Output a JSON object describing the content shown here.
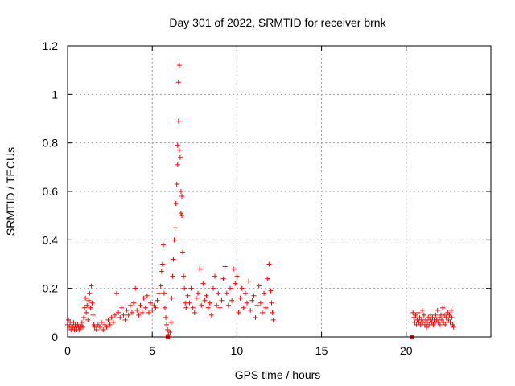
{
  "chart_data": {
    "type": "scatter",
    "title": "Day 301 of 2022, SRMTID for receiver brnk",
    "xlabel": "GPS time / hours",
    "ylabel": "SRMTID / TECUs",
    "xlim": [
      0,
      25
    ],
    "ylim": [
      0,
      1.2
    ],
    "grid": true,
    "marker": "+",
    "color": "#ff0000",
    "xticks": [
      0,
      5,
      10,
      15,
      20
    ],
    "xtick_labels": [
      "0",
      "5",
      "10",
      "15",
      "20"
    ],
    "yticks": [
      0,
      0.2,
      0.4,
      0.6,
      0.8,
      1,
      1.2
    ],
    "ytick_labels": [
      "0",
      "0.2",
      "0.4",
      "0.6",
      "0.8",
      "1",
      "1.2"
    ],
    "series": [
      {
        "name": "SRMTID",
        "points": [
          [
            0.0,
            0.05
          ],
          [
            0.05,
            0.07
          ],
          [
            0.1,
            0.04
          ],
          [
            0.15,
            0.06
          ],
          [
            0.2,
            0.03
          ],
          [
            0.25,
            0.05
          ],
          [
            0.3,
            0.04
          ],
          [
            0.35,
            0.06
          ],
          [
            0.4,
            0.03
          ],
          [
            0.45,
            0.05
          ],
          [
            0.5,
            0.04
          ],
          [
            0.55,
            0.03
          ],
          [
            0.6,
            0.05
          ],
          [
            0.65,
            0.04
          ],
          [
            0.7,
            0.03
          ],
          [
            0.75,
            0.05
          ],
          [
            0.8,
            0.04
          ],
          [
            0.85,
            0.06
          ],
          [
            0.9,
            0.04
          ],
          [
            0.95,
            0.08
          ],
          [
            1.0,
            0.12
          ],
          [
            1.05,
            0.16
          ],
          [
            1.1,
            0.1
          ],
          [
            1.15,
            0.13
          ],
          [
            1.2,
            0.07
          ],
          [
            1.25,
            0.15
          ],
          [
            1.3,
            0.18
          ],
          [
            1.35,
            0.12
          ],
          [
            1.4,
            0.21
          ],
          [
            1.45,
            0.14
          ],
          [
            1.5,
            0.09
          ],
          [
            1.55,
            0.05
          ],
          [
            1.6,
            0.04
          ],
          [
            1.7,
            0.03
          ],
          [
            1.8,
            0.05
          ],
          [
            1.9,
            0.04
          ],
          [
            2.0,
            0.06
          ],
          [
            2.1,
            0.03
          ],
          [
            2.2,
            0.05
          ],
          [
            2.3,
            0.04
          ],
          [
            2.4,
            0.07
          ],
          [
            2.5,
            0.05
          ],
          [
            2.6,
            0.08
          ],
          [
            2.7,
            0.06
          ],
          [
            2.8,
            0.09
          ],
          [
            2.9,
            0.18
          ],
          [
            3.0,
            0.1
          ],
          [
            3.1,
            0.08
          ],
          [
            3.2,
            0.12
          ],
          [
            3.3,
            0.09
          ],
          [
            3.4,
            0.07
          ],
          [
            3.5,
            0.11
          ],
          [
            3.6,
            0.09
          ],
          [
            3.7,
            0.13
          ],
          [
            3.8,
            0.1
          ],
          [
            3.9,
            0.14
          ],
          [
            4.0,
            0.2
          ],
          [
            4.1,
            0.11
          ],
          [
            4.2,
            0.09
          ],
          [
            4.3,
            0.13
          ],
          [
            4.4,
            0.1
          ],
          [
            4.5,
            0.16
          ],
          [
            4.6,
            0.12
          ],
          [
            4.7,
            0.17
          ],
          [
            4.8,
            0.1
          ],
          [
            4.9,
            0.14
          ],
          [
            5.0,
            0.11
          ],
          [
            5.1,
            0.13
          ],
          [
            5.2,
            0.12
          ],
          [
            5.3,
            0.15
          ],
          [
            5.4,
            0.18
          ],
          [
            5.5,
            0.21
          ],
          [
            5.55,
            0.27
          ],
          [
            5.6,
            0.3
          ],
          [
            5.65,
            0.38
          ],
          [
            5.7,
            0.18
          ],
          [
            5.75,
            0.12
          ],
          [
            5.8,
            0.08
          ],
          [
            5.85,
            0.05
          ],
          [
            5.9,
            0.03
          ],
          [
            5.95,
            0.01
          ],
          [
            6.0,
            0.0
          ],
          [
            6.05,
            0.02
          ],
          [
            6.1,
            0.06
          ],
          [
            6.15,
            0.16
          ],
          [
            6.2,
            0.25
          ],
          [
            6.25,
            0.32
          ],
          [
            6.3,
            0.4
          ],
          [
            6.35,
            0.45
          ],
          [
            6.4,
            0.55
          ],
          [
            6.45,
            0.63
          ],
          [
            6.5,
            0.71
          ],
          [
            6.5,
            0.79
          ],
          [
            6.55,
            0.89
          ],
          [
            6.55,
            1.05
          ],
          [
            6.6,
            1.12
          ],
          [
            6.6,
            0.77
          ],
          [
            6.65,
            0.74
          ],
          [
            6.7,
            0.6
          ],
          [
            6.7,
            0.51
          ],
          [
            6.75,
            0.5
          ],
          [
            6.75,
            0.58
          ],
          [
            6.8,
            0.35
          ],
          [
            6.85,
            0.25
          ],
          [
            6.9,
            0.2
          ],
          [
            6.95,
            0.14
          ],
          [
            7.0,
            0.12
          ],
          [
            7.1,
            0.17
          ],
          [
            7.2,
            0.14
          ],
          [
            7.3,
            0.2
          ],
          [
            7.4,
            0.12
          ],
          [
            7.5,
            0.1
          ],
          [
            7.6,
            0.16
          ],
          [
            7.7,
            0.18
          ],
          [
            7.8,
            0.28
          ],
          [
            7.9,
            0.13
          ],
          [
            8.0,
            0.22
          ],
          [
            8.1,
            0.15
          ],
          [
            8.2,
            0.17
          ],
          [
            8.3,
            0.12
          ],
          [
            8.4,
            0.14
          ],
          [
            8.5,
            0.09
          ],
          [
            8.6,
            0.2
          ],
          [
            8.7,
            0.25
          ],
          [
            8.8,
            0.13
          ],
          [
            8.9,
            0.18
          ],
          [
            9.0,
            0.12
          ],
          [
            9.1,
            0.15
          ],
          [
            9.2,
            0.24
          ],
          [
            9.3,
            0.29
          ],
          [
            9.4,
            0.18
          ],
          [
            9.5,
            0.13
          ],
          [
            9.6,
            0.2
          ],
          [
            9.7,
            0.15
          ],
          [
            9.8,
            0.28
          ],
          [
            9.9,
            0.22
          ],
          [
            10.0,
            0.25
          ],
          [
            10.1,
            0.1
          ],
          [
            10.2,
            0.16
          ],
          [
            10.3,
            0.2
          ],
          [
            10.4,
            0.12
          ],
          [
            10.5,
            0.18
          ],
          [
            10.6,
            0.14
          ],
          [
            10.7,
            0.23
          ],
          [
            10.8,
            0.11
          ],
          [
            10.9,
            0.15
          ],
          [
            11.0,
            0.17
          ],
          [
            11.1,
            0.08
          ],
          [
            11.2,
            0.13
          ],
          [
            11.3,
            0.21
          ],
          [
            11.4,
            0.14
          ],
          [
            11.5,
            0.1
          ],
          [
            11.6,
            0.18
          ],
          [
            11.7,
            0.12
          ],
          [
            11.8,
            0.24
          ],
          [
            11.9,
            0.3
          ],
          [
            12.0,
            0.19
          ],
          [
            12.05,
            0.14
          ],
          [
            12.1,
            0.1
          ],
          [
            12.15,
            0.07
          ],
          [
            20.4,
            0.1
          ],
          [
            20.45,
            0.08
          ],
          [
            20.5,
            0.06
          ],
          [
            20.55,
            0.09
          ],
          [
            20.6,
            0.05
          ],
          [
            20.65,
            0.07
          ],
          [
            20.7,
            0.1
          ],
          [
            20.75,
            0.06
          ],
          [
            20.8,
            0.08
          ],
          [
            20.85,
            0.05
          ],
          [
            20.9,
            0.07
          ],
          [
            20.95,
            0.11
          ],
          [
            21.0,
            0.06
          ],
          [
            21.05,
            0.09
          ],
          [
            21.1,
            0.05
          ],
          [
            21.15,
            0.07
          ],
          [
            21.2,
            0.04
          ],
          [
            21.25,
            0.06
          ],
          [
            21.3,
            0.08
          ],
          [
            21.35,
            0.05
          ],
          [
            21.4,
            0.07
          ],
          [
            21.45,
            0.09
          ],
          [
            21.5,
            0.06
          ],
          [
            21.55,
            0.08
          ],
          [
            21.6,
            0.05
          ],
          [
            21.65,
            0.07
          ],
          [
            21.7,
            0.06
          ],
          [
            21.75,
            0.09
          ],
          [
            21.8,
            0.07
          ],
          [
            21.85,
            0.11
          ],
          [
            21.9,
            0.06
          ],
          [
            21.95,
            0.08
          ],
          [
            22.0,
            0.05
          ],
          [
            22.05,
            0.09
          ],
          [
            22.1,
            0.07
          ],
          [
            22.15,
            0.12
          ],
          [
            22.2,
            0.06
          ],
          [
            22.25,
            0.09
          ],
          [
            22.3,
            0.05
          ],
          [
            22.35,
            0.08
          ],
          [
            22.4,
            0.06
          ],
          [
            22.45,
            0.1
          ],
          [
            22.5,
            0.07
          ],
          [
            22.55,
            0.09
          ],
          [
            22.6,
            0.06
          ],
          [
            22.65,
            0.11
          ],
          [
            22.7,
            0.08
          ],
          [
            22.75,
            0.05
          ],
          [
            22.8,
            0.04
          ]
        ],
        "square_markers": [
          [
            5.92,
            0.0
          ],
          [
            20.32,
            0.0
          ]
        ]
      }
    ]
  }
}
